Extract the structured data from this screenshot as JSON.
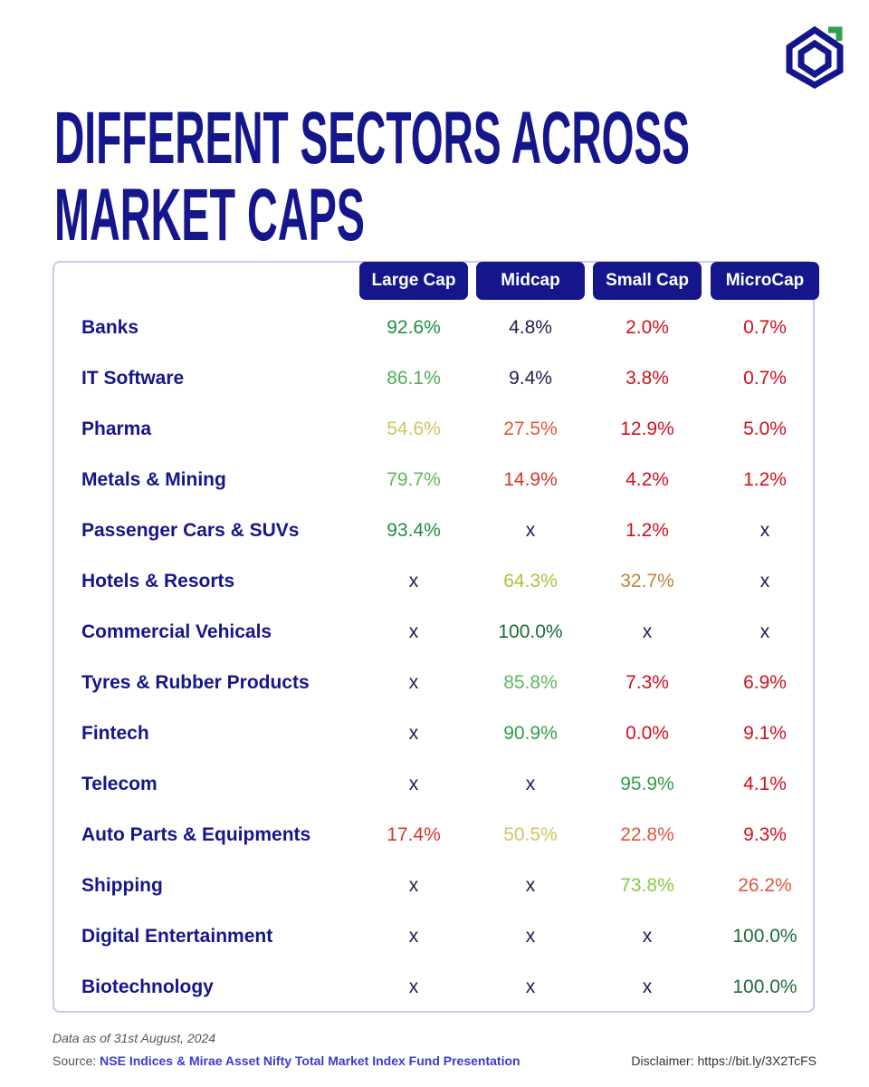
{
  "header": {
    "title_lines": [
      "DIFFERENT SECTORS ACROSS",
      "MARKET CAPS"
    ]
  },
  "table": {
    "columns": [
      "Large Cap",
      "Midcap",
      "Small Cap",
      "MicroCap"
    ],
    "rows": [
      {
        "label": "Banks",
        "cells": [
          "92.6%",
          "4.8%",
          "2.0%",
          "0.7%"
        ],
        "colors": [
          "#1f8f3f",
          "#1c1c50",
          "#d0101e",
          "#d0101e"
        ]
      },
      {
        "label": "IT Software",
        "cells": [
          "86.1%",
          "9.4%",
          "3.8%",
          "0.7%"
        ],
        "colors": [
          "#4caf50",
          "#1c1c50",
          "#d0101e",
          "#d0101e"
        ]
      },
      {
        "label": "Pharma",
        "cells": [
          "54.6%",
          "27.5%",
          "12.9%",
          "5.0%"
        ],
        "colors": [
          "#cfc463",
          "#e2553a",
          "#d0101e",
          "#d0101e"
        ]
      },
      {
        "label": "Metals & Mining",
        "cells": [
          "79.7%",
          "14.9%",
          "4.2%",
          "1.2%"
        ],
        "colors": [
          "#5cb85c",
          "#d6352a",
          "#d0101e",
          "#d0101e"
        ]
      },
      {
        "label": "Passenger Cars & SUVs",
        "cells": [
          "93.4%",
          "x",
          "1.2%",
          "x"
        ],
        "colors": [
          "#1f8f3f",
          "#1c1c50",
          "#d0101e",
          "#1c1c50"
        ]
      },
      {
        "label": "Hotels & Resorts",
        "cells": [
          "x",
          "64.3%",
          "32.7%",
          "x"
        ],
        "colors": [
          "#1c1c50",
          "#a8c23c",
          "#c0843a",
          "#1c1c50"
        ]
      },
      {
        "label": "Commercial Vehicals",
        "cells": [
          "x",
          "100.0%",
          "x",
          "x"
        ],
        "colors": [
          "#1c1c50",
          "#1b6b35",
          "#1c1c50",
          "#1c1c50"
        ]
      },
      {
        "label": "Tyres & Rubber Products",
        "cells": [
          "x",
          "85.8%",
          "7.3%",
          "6.9%"
        ],
        "colors": [
          "#1c1c50",
          "#5cb85c",
          "#d0101e",
          "#d0101e"
        ]
      },
      {
        "label": "Fintech",
        "cells": [
          "x",
          "90.9%",
          "0.0%",
          "9.1%"
        ],
        "colors": [
          "#1c1c50",
          "#2e9e48",
          "#d0101e",
          "#d0101e"
        ]
      },
      {
        "label": "Telecom",
        "cells": [
          "x",
          "x",
          "95.9%",
          "4.1%"
        ],
        "colors": [
          "#1c1c50",
          "#1c1c50",
          "#2ea04a",
          "#d0101e"
        ]
      },
      {
        "label": "Auto Parts & Equipments",
        "cells": [
          "17.4%",
          "50.5%",
          "22.8%",
          "9.3%"
        ],
        "colors": [
          "#d6352a",
          "#cfc463",
          "#e2553a",
          "#d0101e"
        ]
      },
      {
        "label": "Shipping",
        "cells": [
          "x",
          "x",
          "73.8%",
          "26.2%"
        ],
        "colors": [
          "#1c1c50",
          "#1c1c50",
          "#8cc84a",
          "#e2553a"
        ]
      },
      {
        "label": "Digital Entertainment",
        "cells": [
          "x",
          "x",
          "x",
          "100.0%"
        ],
        "colors": [
          "#1c1c50",
          "#1c1c50",
          "#1c1c50",
          "#1b6b35"
        ]
      },
      {
        "label": "Biotechnology",
        "cells": [
          "x",
          "x",
          "x",
          "100.0%"
        ],
        "colors": [
          "#1c1c50",
          "#1c1c50",
          "#1c1c50",
          "#1b6b35"
        ]
      }
    ]
  },
  "footer": {
    "note": "Data as of 31st August, 2024",
    "source_label": "Source:",
    "source": "NSE Indices & Mirae Asset Nifty Total Market Index Fund Presentation",
    "disclaimer": "Disclaimer: https://bit.ly/3X2TcFS"
  }
}
